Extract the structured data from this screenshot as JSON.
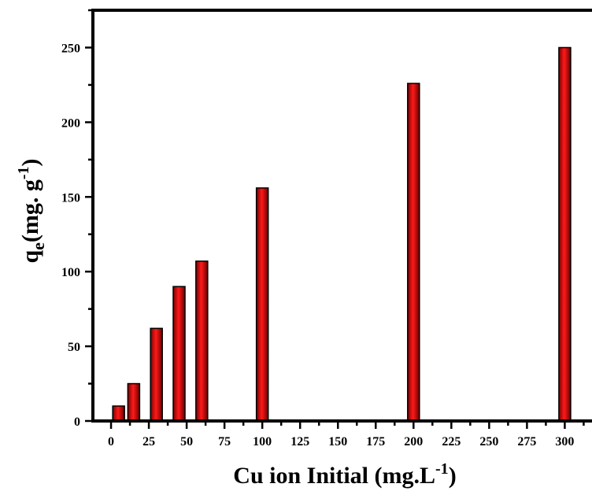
{
  "chart_data": {
    "type": "bar",
    "x": [
      5,
      15,
      30,
      45,
      60,
      100,
      200,
      300
    ],
    "values": [
      10,
      25,
      62,
      90,
      107,
      156,
      226,
      250
    ],
    "xlabel": "Cu ion Initial  (mg.L",
    "xlabel_sup": "-1",
    "xlabel_suffix": ")",
    "ylabel_main": "q",
    "ylabel_sub": "e",
    "ylabel_mid": "(mg. g",
    "ylabel_sup": "-1",
    "ylabel_suffix": ")",
    "xlim": [
      -12,
      318
    ],
    "ylim": [
      0,
      275
    ],
    "xticks": [
      "0",
      "25",
      "50",
      "75",
      "100",
      "125",
      "150",
      "175",
      "200",
      "225",
      "250",
      "275",
      "300"
    ],
    "yticks": [
      "0",
      "50",
      "100",
      "150",
      "200",
      "250"
    ],
    "grid": false,
    "bar_color": "#e8000b"
  }
}
